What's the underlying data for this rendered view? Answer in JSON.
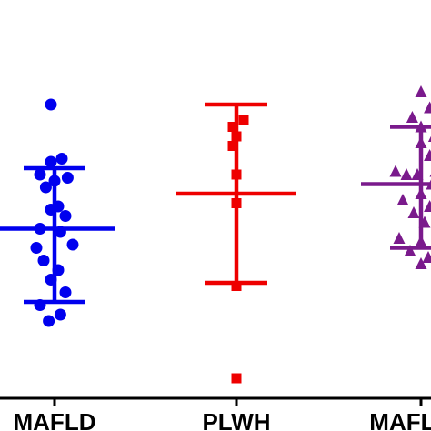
{
  "chart_data": {
    "type": "scatter",
    "categories": [
      "MAFLD",
      "PLWH",
      "MAFLD +"
    ],
    "ylim": [
      0,
      100
    ],
    "grid": false,
    "series": [
      {
        "category": "MAFLD",
        "color": "#0000ee",
        "marker": "circle",
        "mean": 51,
        "error_low": 28,
        "error_high": 70,
        "points": [
          {
            "x": -0.05,
            "y": 90
          },
          {
            "x": 0.1,
            "y": 73
          },
          {
            "x": -0.05,
            "y": 72
          },
          {
            "x": -0.2,
            "y": 68
          },
          {
            "x": 0.18,
            "y": 67
          },
          {
            "x": 0.0,
            "y": 66
          },
          {
            "x": -0.12,
            "y": 64
          },
          {
            "x": 0.05,
            "y": 58
          },
          {
            "x": -0.05,
            "y": 57
          },
          {
            "x": 0.15,
            "y": 55
          },
          {
            "x": -0.2,
            "y": 51
          },
          {
            "x": 0.08,
            "y": 50
          },
          {
            "x": 0.25,
            "y": 46
          },
          {
            "x": -0.25,
            "y": 45
          },
          {
            "x": -0.15,
            "y": 41
          },
          {
            "x": 0.05,
            "y": 38
          },
          {
            "x": -0.05,
            "y": 35
          },
          {
            "x": 0.15,
            "y": 31
          },
          {
            "x": -0.2,
            "y": 27
          },
          {
            "x": 0.08,
            "y": 24
          },
          {
            "x": -0.08,
            "y": 22
          }
        ]
      },
      {
        "category": "PLWH",
        "color": "#ee0000",
        "marker": "square",
        "mean": 62,
        "error_low": 34,
        "error_high": 90,
        "points": [
          {
            "x": 0.1,
            "y": 85
          },
          {
            "x": -0.05,
            "y": 83
          },
          {
            "x": 0.0,
            "y": 80
          },
          {
            "x": -0.05,
            "y": 77
          },
          {
            "x": 0.0,
            "y": 68
          },
          {
            "x": 0.0,
            "y": 59
          },
          {
            "x": 0.0,
            "y": 33
          },
          {
            "x": 0.0,
            "y": 4
          }
        ]
      },
      {
        "category": "MAFLD +",
        "color": "#7a1a8c",
        "marker": "triangle",
        "mean": 65,
        "error_low": 45,
        "error_high": 83,
        "points": [
          {
            "x": 0.0,
            "y": 94
          },
          {
            "x": 0.12,
            "y": 89
          },
          {
            "x": -0.12,
            "y": 86
          },
          {
            "x": 0.0,
            "y": 83
          },
          {
            "x": 0.18,
            "y": 80
          },
          {
            "x": 0.0,
            "y": 78
          },
          {
            "x": 0.12,
            "y": 74
          },
          {
            "x": 0.2,
            "y": 69
          },
          {
            "x": -0.35,
            "y": 69
          },
          {
            "x": -0.2,
            "y": 68
          },
          {
            "x": -0.05,
            "y": 68
          },
          {
            "x": 0.15,
            "y": 65
          },
          {
            "x": 0.0,
            "y": 62
          },
          {
            "x": -0.25,
            "y": 60
          },
          {
            "x": 0.12,
            "y": 58
          },
          {
            "x": -0.1,
            "y": 56
          },
          {
            "x": 0.05,
            "y": 53
          },
          {
            "x": -0.3,
            "y": 48
          },
          {
            "x": 0.0,
            "y": 47
          },
          {
            "x": 0.22,
            "y": 45
          },
          {
            "x": -0.15,
            "y": 44
          },
          {
            "x": 0.1,
            "y": 42
          },
          {
            "x": 0.0,
            "y": 40
          }
        ]
      }
    ]
  }
}
